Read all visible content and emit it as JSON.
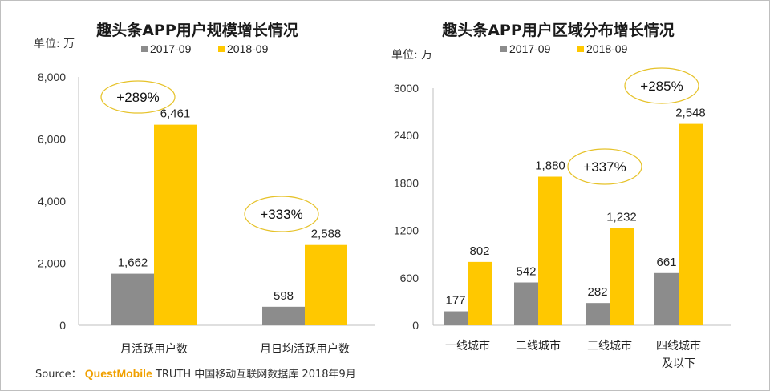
{
  "colors": {
    "series_2017": "#8c8c8c",
    "series_2018": "#ffc800",
    "ellipse": "#e6c229",
    "axis": "#bfbfbf"
  },
  "source": {
    "label": "Source：",
    "brand": "QuestMobile",
    "text": "TRUTH 中国移动互联网数据库 2018年9月"
  },
  "chart_data": [
    {
      "type": "bar",
      "title": "趣头条APP用户规模增长情况",
      "unit": "单位: 万",
      "categories": [
        "月活跃用户数",
        "月日均活跃用户数"
      ],
      "series": [
        {
          "name": "2017-09",
          "values": [
            1662,
            598
          ],
          "labels": [
            "1,662",
            "598"
          ]
        },
        {
          "name": "2018-09",
          "values": [
            6461,
            2588
          ],
          "labels": [
            "6,461",
            "2,588"
          ]
        }
      ],
      "yticks": [
        0,
        2000,
        4000,
        6000,
        8000
      ],
      "ytick_labels": [
        "0",
        "2,000",
        "4,000",
        "6,000",
        "8,000"
      ],
      "ylim": [
        0,
        8000
      ],
      "growth": [
        "+289%",
        "+333%"
      ],
      "legend_position": "top"
    },
    {
      "type": "bar",
      "title": "趣头条APP用户区域分布增长情况",
      "unit": "单位: 万",
      "categories": [
        [
          "一线城市"
        ],
        [
          "二线城市"
        ],
        [
          "三线城市"
        ],
        [
          "四线城市",
          "及以下"
        ]
      ],
      "series": [
        {
          "name": "2017-09",
          "values": [
            177,
            542,
            282,
            661
          ],
          "labels": [
            "177",
            "542",
            "282",
            "661"
          ]
        },
        {
          "name": "2018-09",
          "values": [
            802,
            1880,
            1232,
            2548
          ],
          "labels": [
            "802",
            "1,880",
            "1,232",
            "2,548"
          ]
        }
      ],
      "yticks": [
        0,
        600,
        1200,
        1800,
        2400,
        3000
      ],
      "ytick_labels": [
        "0",
        "600",
        "1200",
        "1800",
        "2400",
        "3000"
      ],
      "ylim": [
        0,
        3000
      ],
      "growth": [
        "+337%",
        "+285%"
      ],
      "legend_position": "top"
    }
  ]
}
